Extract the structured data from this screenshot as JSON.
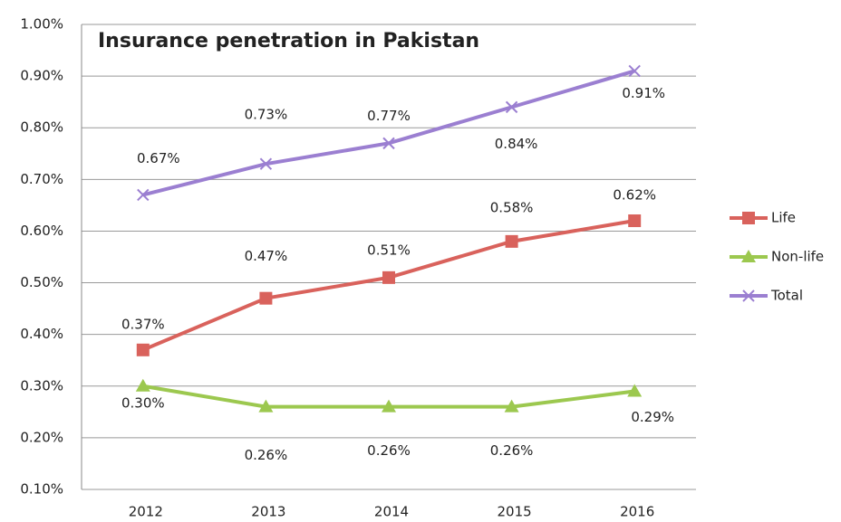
{
  "chart_data": {
    "type": "line",
    "title": "Insurance penetration in Pakistan",
    "categories": [
      "2012",
      "2013",
      "2014",
      "2015",
      "2016"
    ],
    "series": [
      {
        "name": "Life",
        "color": "#d9625c",
        "marker": "square",
        "values": [
          0.37,
          0.47,
          0.51,
          0.58,
          0.62
        ],
        "value_labels": [
          "0.37%",
          "0.47%",
          "0.51%",
          "0.58%",
          "0.62%"
        ]
      },
      {
        "name": "Non-life",
        "color": "#9cc84f",
        "marker": "triangle",
        "values": [
          0.3,
          0.26,
          0.26,
          0.26,
          0.29
        ],
        "value_labels": [
          "0.30%",
          "0.26%",
          "0.26%",
          "0.26%",
          "0.29%"
        ]
      },
      {
        "name": "Total",
        "color": "#9b7fd1",
        "marker": "x",
        "values": [
          0.67,
          0.73,
          0.77,
          0.84,
          0.91
        ],
        "value_labels": [
          "0.67%",
          "0.73%",
          "0.77%",
          "0.84%",
          "0.91%"
        ]
      }
    ],
    "ylim": [
      0.1,
      1.0
    ],
    "yticks": [
      {
        "value": 0.1,
        "label": "0.10%"
      },
      {
        "value": 0.2,
        "label": "0.20%"
      },
      {
        "value": 0.3,
        "label": "0.30%"
      },
      {
        "value": 0.4,
        "label": "0.40%"
      },
      {
        "value": 0.5,
        "label": "0.50%"
      },
      {
        "value": 0.6,
        "label": "0.60%"
      },
      {
        "value": 0.7,
        "label": "0.70%"
      },
      {
        "value": 0.8,
        "label": "0.80%"
      },
      {
        "value": 0.9,
        "label": "0.90%"
      },
      {
        "value": 1.0,
        "label": "1.00%"
      }
    ],
    "grid": true,
    "legend": "right"
  }
}
